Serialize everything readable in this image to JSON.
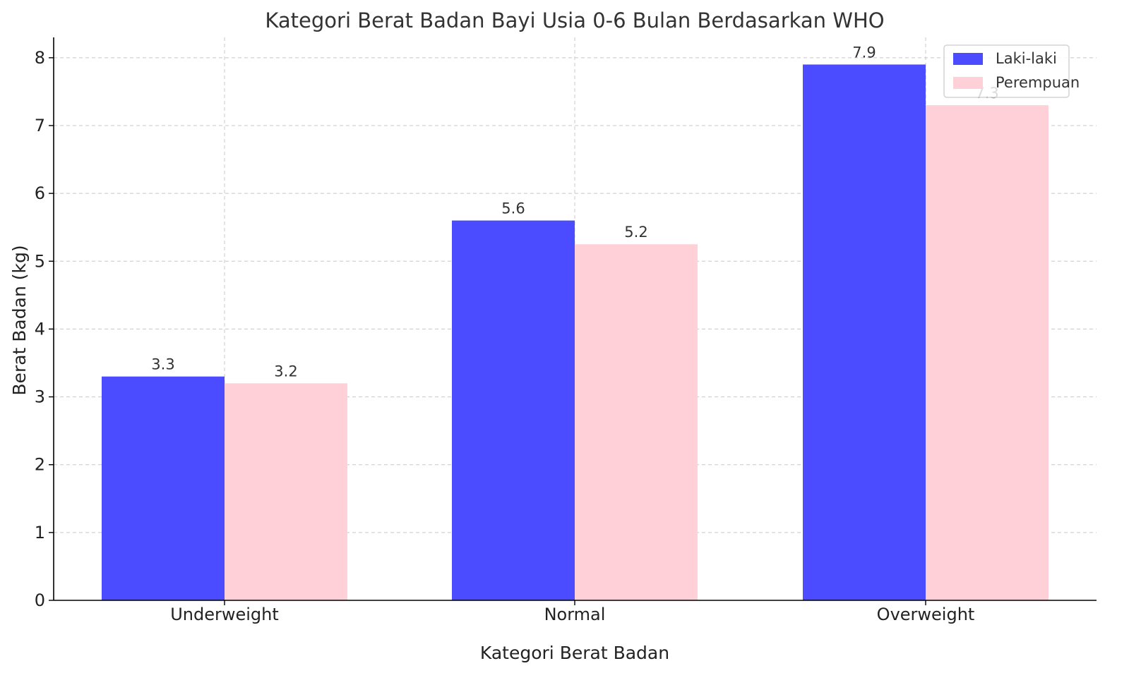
{
  "chart_data": {
    "type": "bar",
    "title": "Kategori Berat Badan Bayi Usia 0-6 Bulan Berdasarkan WHO",
    "xlabel": "Kategori Berat Badan",
    "ylabel": "Berat Badan (kg)",
    "categories": [
      "Underweight",
      "Normal",
      "Overweight"
    ],
    "series": [
      {
        "name": "Laki-laki",
        "values": [
          3.3,
          5.6,
          7.9
        ],
        "labels": [
          "3.3",
          "5.6",
          "7.9"
        ],
        "color": "#4b4bff"
      },
      {
        "name": "Perempuan",
        "values": [
          3.2,
          5.25,
          7.3
        ],
        "labels": [
          "3.2",
          "5.2",
          "7.3"
        ],
        "color": "#ffd0d8"
      }
    ],
    "ylim": [
      0,
      8.3
    ],
    "yticks": [
      0,
      1,
      2,
      3,
      4,
      5,
      6,
      7,
      8
    ],
    "grid": true,
    "legend_position": "top-right"
  }
}
